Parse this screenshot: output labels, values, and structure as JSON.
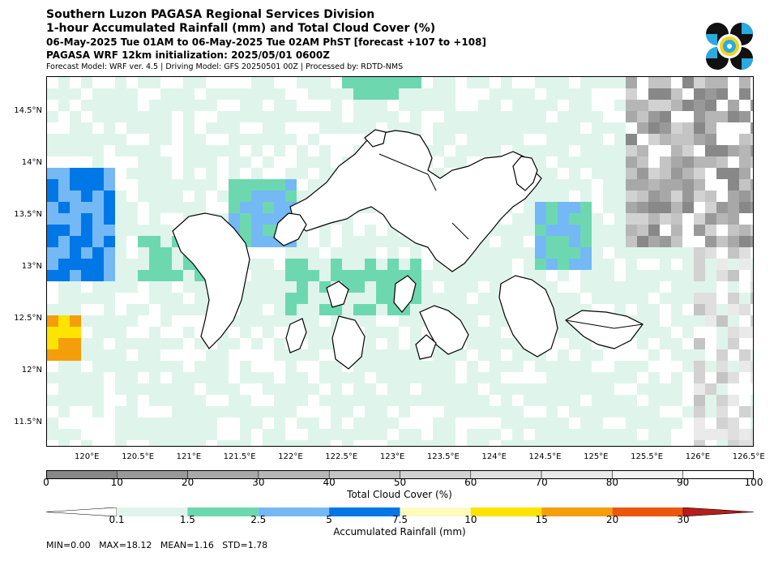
{
  "header": {
    "title1": "Southern Luzon PAGASA Regional Services Division",
    "title2": "1-hour Accumulated Rainfall (mm) and Total Cloud Cover (%)",
    "subtitle1": "06-May-2025 Tue 01AM to 06-May-2025 Tue 02AM PhST [forecast +107 to +108]",
    "subtitle2": "PAGASA WRF 12km initialization: 2025/05/01 0600Z",
    "info": "Forecast Model: WRF ver. 4.5 | Driving Model: GFS 20250501 00Z | Processed by: RDTD-NMS"
  },
  "map": {
    "lat_labels": [
      "14.5°N",
      "14°N",
      "13.5°N",
      "13°N",
      "12.5°N",
      "12°N",
      "11.5°N"
    ],
    "lat_values": [
      14.5,
      14,
      13.5,
      13,
      12.5,
      12,
      11.5
    ],
    "lon_labels": [
      "120°E",
      "120.5°E",
      "121°E",
      "121.5°E",
      "122°E",
      "122.5°E",
      "123°E",
      "123.5°E",
      "124°E",
      "124.5°E",
      "125°E",
      "125.5°E",
      "126°E",
      "126.5°E"
    ],
    "lon_values": [
      120,
      120.5,
      121,
      121.5,
      122,
      122.5,
      123,
      123.5,
      124,
      124.5,
      125,
      125.5,
      126,
      126.5
    ],
    "extent": {
      "lon_min": 119.6,
      "lon_max": 126.55,
      "lat_min": 11.27,
      "lat_max": 14.84
    }
  },
  "cloud_bar": {
    "label": "Total Cloud Cover (%)",
    "ticks": [
      "0",
      "10",
      "20",
      "30",
      "40",
      "50",
      "60",
      "70",
      "80",
      "90",
      "100"
    ],
    "colors": [
      "#888888",
      "#999999",
      "#a8a8a8",
      "#b6b6b6",
      "#c4c4c4",
      "#d2d2d2",
      "#dfdfdf",
      "#eaeaea",
      "#f4f4f4",
      "#ffffff"
    ]
  },
  "rain_bar": {
    "label": "Accumulated Rainfall (mm)",
    "ticks": [
      "0.1",
      "1.5",
      "2.5",
      "5",
      "7.5",
      "10",
      "15",
      "20",
      "30"
    ],
    "colors": [
      "#dff5ec",
      "#6dd8b0",
      "#74b9f5",
      "#0077e6",
      "#fdfbbe",
      "#fde400",
      "#f59e0b",
      "#ea580c",
      "#b91c1c"
    ]
  },
  "stats": "MIN=0.00   MAX=18.12   MEAN=1.16   STD=1.78"
}
